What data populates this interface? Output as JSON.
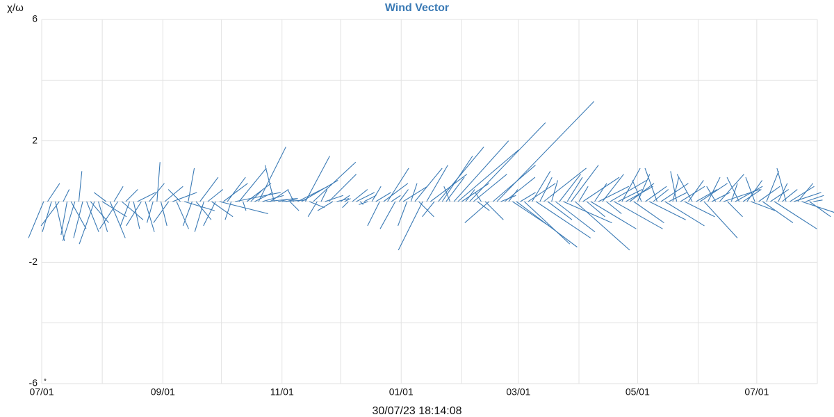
{
  "chart_data": {
    "type": "vector",
    "title": "Wind Vector",
    "y_label": "χ/ω",
    "footer": "30/07/23 18:14:08",
    "annotation": "*",
    "color": "#3a7ab5",
    "xlim": [
      0,
      397
    ],
    "xticks": [
      {
        "value": 0,
        "label": "07/01"
      },
      {
        "value": 62,
        "label": "09/01"
      },
      {
        "value": 123,
        "label": "11/01"
      },
      {
        "value": 184,
        "label": "01/01"
      },
      {
        "value": 244,
        "label": "03/01"
      },
      {
        "value": 305,
        "label": "05/01"
      },
      {
        "value": 366,
        "label": "07/01"
      }
    ],
    "x_minor_grid": [
      31,
      92,
      153,
      215,
      275,
      336,
      397
    ],
    "ylim": [
      -6,
      6
    ],
    "yticks": [
      -6,
      -2,
      2,
      6
    ],
    "y_minor_grid": [
      -4,
      0,
      4
    ],
    "grid": true,
    "x": [
      1,
      3,
      5,
      7,
      9,
      11,
      13,
      15,
      17,
      19,
      21,
      23,
      25,
      27,
      29,
      31,
      33,
      35,
      37,
      39,
      41,
      43,
      45,
      47,
      49,
      51,
      53,
      55,
      57,
      59,
      61,
      63,
      65,
      67,
      69,
      71,
      73,
      75,
      77,
      79,
      81,
      83,
      85,
      87,
      89,
      91,
      93,
      95,
      97,
      99,
      101,
      103,
      105,
      107,
      109,
      111,
      113,
      115,
      117,
      119,
      121,
      123,
      125,
      127,
      129,
      131,
      133,
      135,
      137,
      139,
      141,
      143,
      145,
      147,
      149,
      151,
      153,
      155,
      157,
      159,
      161,
      163,
      165,
      167,
      169,
      171,
      173,
      175,
      177,
      179,
      181,
      183,
      185,
      187,
      189,
      191,
      193,
      195,
      197,
      199,
      201,
      203,
      205,
      207,
      209,
      211,
      213,
      215,
      217,
      219,
      221,
      223,
      225,
      227,
      229,
      231,
      233,
      235,
      237,
      239,
      241,
      243,
      245,
      247,
      249,
      251,
      253,
      255,
      257,
      259,
      261,
      263,
      265,
      267,
      269,
      271,
      273,
      275,
      277,
      279,
      281,
      283,
      285,
      287,
      289,
      291,
      293,
      295,
      297,
      299,
      301,
      303,
      305,
      307,
      309,
      311,
      313,
      315,
      317,
      319,
      321,
      323,
      325,
      327,
      329,
      331,
      333,
      335,
      337,
      339,
      341,
      343,
      345,
      347,
      349,
      351,
      353,
      355,
      357,
      359,
      361,
      363,
      365,
      367,
      369,
      371,
      373,
      375,
      377,
      379,
      381,
      383,
      385,
      387,
      389,
      391,
      393,
      395
    ],
    "u": [
      -0.5,
      0.4,
      -0.3,
      0.3,
      -0.6,
      0.2,
      -0.2,
      0.5,
      -0.4,
      0.1,
      -0.3,
      0.4,
      0.6,
      -0.5,
      0.3,
      0.8,
      -0.4,
      0.5,
      0.3,
      -0.6,
      0.7,
      0.4,
      -0.3,
      0.2,
      0.6,
      -0.5,
      0.3,
      0.5,
      -0.2,
      0.1,
      0.2,
      0.6,
      -0.5,
      0.8,
      0.4,
      -0.4,
      1.0,
      0.2,
      -0.3,
      0.5,
      0.6,
      -0.3,
      0.5,
      0.7,
      -0.4,
      1.6,
      0.8,
      0.6,
      -0.2,
      1.5,
      0.9,
      0.1,
      0.8,
      0.4,
      0.6,
      0.9,
      0.7,
      1.0,
      0.6,
      -0.3,
      0.5,
      0.8,
      0.4,
      0.3,
      -0.2,
      1.0,
      1.2,
      0.8,
      0.5,
      1.4,
      -0.3,
      0.2,
      0.6,
      0.9,
      -0.5,
      0.4,
      0.3,
      0.2,
      -0.2,
      0.5,
      0.6,
      0.1,
      0.4,
      -0.3,
      0.3,
      0.5,
      -0.4,
      0.8,
      0.7,
      0.3,
      -0.5,
      0.3,
      0.8,
      -0.3,
      0.2,
      0.9,
      0.5,
      -0.8,
      0.7,
      1.2,
      -0.4,
      1.5,
      1.0,
      0.6,
      -0.2,
      1.8,
      2.0,
      0.9,
      0.3,
      2.5,
      1.1,
      0.4,
      -0.2,
      0.6,
      -0.8,
      1.4,
      3.2,
      0.5,
      1.0,
      0.3,
      1.2,
      2.0,
      0.5,
      1.5,
      0.9,
      0.6,
      1.8,
      0.4,
      1.4,
      0.8,
      0.2,
      1.3,
      0.7,
      1.6,
      0.5,
      0.9,
      1.8,
      0.3,
      1.2,
      0.6,
      1.5,
      0.4,
      1.0,
      0.7,
      0.5,
      1.2,
      1.6,
      0.8,
      0.6,
      0.9,
      0.8,
      1.0,
      0.4,
      -0.3,
      0.7,
      1.2,
      0.5,
      -0.4,
      0.9,
      1.3,
      0.6,
      0.2,
      -0.2,
      0.8,
      1.0,
      0.5,
      -0.5,
      0.7,
      0.9,
      1.1,
      0.4,
      0.6,
      -0.3,
      0.8,
      1.2,
      0.5,
      0.2,
      0.9,
      -0.4,
      0.6,
      0.5,
      0.8,
      -0.3,
      0.7,
      1.0,
      0.4,
      0.6,
      1.4,
      0.3,
      0.5,
      -0.3,
      0.8,
      0.9,
      0.5,
      1.2,
      0.6,
      0.7,
      0.3
    ],
    "v": [
      -1.2,
      0.6,
      -1.0,
      -1.3,
      -0.8,
      0.4,
      -1.1,
      -0.9,
      -1.3,
      1.0,
      -1.2,
      -1.0,
      -0.7,
      -1.4,
      -1.0,
      -0.5,
      0.3,
      -1.2,
      0.5,
      -0.9,
      -0.6,
      0.4,
      -0.8,
      -0.9,
      0.3,
      -0.8,
      -1.0,
      0.6,
      -0.7,
      1.3,
      -0.8,
      0.5,
      -0.7,
      0.3,
      -0.9,
      0.4,
      -0.3,
      1.1,
      -0.8,
      -0.6,
      0.8,
      -1.0,
      0.4,
      -0.5,
      -0.8,
      -0.4,
      0.6,
      0.8,
      -0.6,
      0.3,
      1.1,
      -0.3,
      0.6,
      0.4,
      0.3,
      1.8,
      0.2,
      0.1,
      0.4,
      1.2,
      0.1,
      0.05,
      0.1,
      -0.3,
      0.4,
      0.5,
      0.7,
      1.5,
      -0.2,
      1.3,
      -0.5,
      0.4,
      0.2,
      0.9,
      -0.3,
      0.1,
      0.2,
      0.1,
      -0.2,
      0.4,
      0.3,
      -0.1,
      0.2,
      -0.1,
      0.5,
      0.3,
      -0.8,
      0.6,
      1.1,
      0.2,
      -0.9,
      0.4,
      0.5,
      -0.8,
      0.6,
      1.1,
      -0.5,
      -1.6,
      1.2,
      0.9,
      -0.5,
      1.8,
      1.5,
      0.8,
      0.5,
      2.0,
      1.7,
      0.6,
      0.4,
      2.6,
      0.9,
      -0.3,
      0.3,
      -0.6,
      -0.7,
      1.2,
      3.3,
      0.2,
      0.8,
      0.4,
      -0.8,
      -1.5,
      0.3,
      -1.4,
      0.6,
      1.0,
      -1.2,
      0.8,
      1.1,
      -0.6,
      0.7,
      -1.0,
      0.9,
      -0.7,
      0.8,
      1.2,
      -1.6,
      0.5,
      0.8,
      -0.5,
      -0.9,
      0.6,
      0.5,
      0.9,
      -0.4,
      0.7,
      -0.9,
      0.4,
      1.1,
      0.5,
      0.6,
      -0.7,
      0.9,
      0.7,
      0.5,
      -0.6,
      0.4,
      1.1,
      0.6,
      -0.8,
      0.3,
      0.8,
      1.0,
      0.5,
      -0.5,
      0.7,
      0.9,
      0.4,
      0.6,
      -1.2,
      0.8,
      0.3,
      0.5,
      0.9,
      0.4,
      -0.5,
      0.6,
      0.5,
      0.8,
      0.4,
      0.7,
      -0.3,
      0.8,
      0.5,
      -0.7,
      1.0,
      0.4,
      -0.9,
      0.6,
      0.4,
      1.1,
      0.5,
      0.3,
      0.6,
      -0.4,
      0.2,
      -0.5,
      0.05
    ]
  }
}
